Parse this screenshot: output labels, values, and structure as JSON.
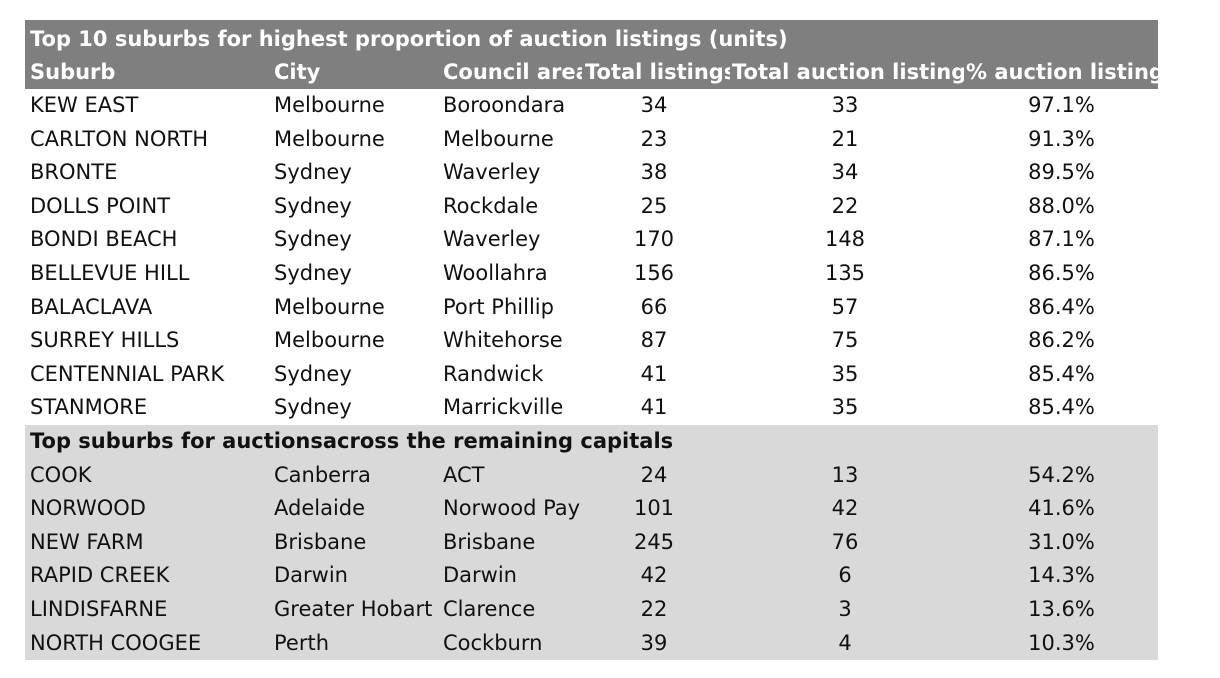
{
  "chart_data": {
    "type": "table",
    "title": "Top 10 suburbs for highest proportion of auction listings (units)",
    "columns": [
      "Suburb",
      "City",
      "Council area",
      "Total listings",
      "Total auction listings",
      "% auction listings"
    ],
    "rows": [
      [
        "KEW EAST",
        "Melbourne",
        "Boroondara",
        "34",
        "33",
        "97.1%"
      ],
      [
        "CARLTON NORTH",
        "Melbourne",
        "Melbourne",
        "23",
        "21",
        "91.3%"
      ],
      [
        "BRONTE",
        "Sydney",
        "Waverley",
        "38",
        "34",
        "89.5%"
      ],
      [
        "DOLLS POINT",
        "Sydney",
        "Rockdale",
        "25",
        "22",
        "88.0%"
      ],
      [
        "BONDI BEACH",
        "Sydney",
        "Waverley",
        "170",
        "148",
        "87.1%"
      ],
      [
        "BELLEVUE HILL",
        "Sydney",
        "Woollahra",
        "156",
        "135",
        "86.5%"
      ],
      [
        "BALACLAVA",
        "Melbourne",
        "Port Phillip",
        "66",
        "57",
        "86.4%"
      ],
      [
        "SURREY HILLS",
        "Melbourne",
        "Whitehorse",
        "87",
        "75",
        "86.2%"
      ],
      [
        "CENTENNIAL PARK",
        "Sydney",
        "Randwick",
        "41",
        "35",
        "85.4%"
      ],
      [
        "STANMORE",
        "Sydney",
        "Marrickville",
        "41",
        "35",
        "85.4%"
      ]
    ],
    "section_title": "Top suburbs for auctionsacross the remaining capitals",
    "section_rows": [
      [
        "COOK",
        "Canberra",
        "ACT",
        "24",
        "13",
        "54.2%"
      ],
      [
        "NORWOOD",
        "Adelaide",
        "Norwood Payneham",
        "101",
        "42",
        "41.6%"
      ],
      [
        "NEW FARM",
        "Brisbane",
        "Brisbane",
        "245",
        "76",
        "31.0%"
      ],
      [
        "RAPID CREEK",
        "Darwin",
        "Darwin",
        "42",
        "6",
        "14.3%"
      ],
      [
        "LINDISFARNE",
        "Greater Hobart",
        "Clarence",
        "22",
        "3",
        "13.6%"
      ],
      [
        "NORTH COOGEE",
        "Perth",
        "Cockburn",
        "39",
        "4",
        "10.3%"
      ]
    ]
  },
  "colors": {
    "header_bg": "#7f7f7f",
    "header_text": "#ffffff",
    "section_bg": "#d9d9d9"
  }
}
